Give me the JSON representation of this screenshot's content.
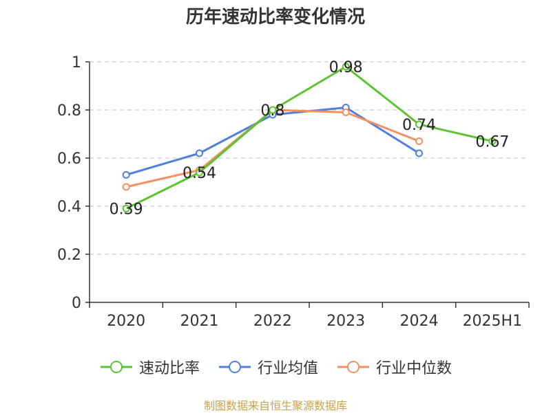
{
  "chart_data": {
    "type": "line",
    "title": "历年速动比率变化情况",
    "categories": [
      "2020",
      "2021",
      "2022",
      "2023",
      "2024",
      "2025H1"
    ],
    "yticks": [
      "0",
      "0.2",
      "0.4",
      "0.6",
      "0.8",
      "1"
    ],
    "ylim": [
      0,
      1
    ],
    "grid": true,
    "legend_position": "bottom",
    "series": [
      {
        "name": "速动比率",
        "color": "#5cc330",
        "labeled": true,
        "values": [
          0.39,
          0.54,
          0.8,
          0.98,
          0.74,
          0.67
        ],
        "labels": [
          "0.39",
          "0.54",
          "0.8",
          "0.98",
          "0.74",
          "0.67"
        ]
      },
      {
        "name": "行业均值",
        "color": "#4f7fdc",
        "labeled": false,
        "values": [
          0.53,
          0.62,
          0.78,
          0.81,
          0.62,
          null
        ]
      },
      {
        "name": "行业中位数",
        "color": "#f2905e",
        "labeled": false,
        "values": [
          0.48,
          0.55,
          0.8,
          0.79,
          0.67,
          null
        ]
      }
    ]
  },
  "source": "制图数据来自恒生聚源数据库"
}
